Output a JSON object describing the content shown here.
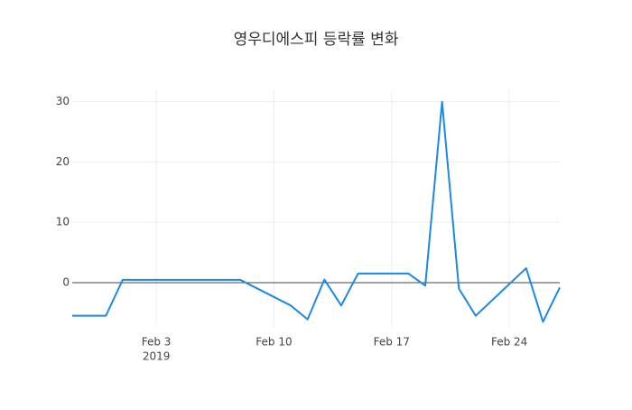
{
  "chart_data": {
    "type": "line",
    "title": "영우디에스피 등락률 변화",
    "x": [
      "2019-01-29",
      "2019-01-30",
      "2019-01-31",
      "2019-02-01",
      "2019-02-07",
      "2019-02-08",
      "2019-02-11",
      "2019-02-12",
      "2019-02-13",
      "2019-02-14",
      "2019-02-15",
      "2019-02-18",
      "2019-02-19",
      "2019-02-20",
      "2019-02-21",
      "2019-02-22",
      "2019-02-25",
      "2019-02-26",
      "2019-02-27"
    ],
    "series": [
      {
        "color": "#1e88e5",
        "values": [
          -5.5,
          -5.5,
          -5.5,
          0.45,
          0.45,
          0.45,
          -3.8,
          -6.1,
          0.5,
          -3.8,
          1.5,
          1.5,
          -0.5,
          30,
          -1.0,
          -5.5,
          2.4,
          -6.5,
          -0.8
        ]
      }
    ],
    "xlim": [
      "2019-01-29",
      "2019-02-27"
    ],
    "xticks": [
      {
        "value": "2019-02-03",
        "label": "Feb 3"
      },
      {
        "value": "2019-02-10",
        "label": "Feb 10"
      },
      {
        "value": "2019-02-17",
        "label": "Feb 17"
      },
      {
        "value": "2019-02-24",
        "label": "Feb 24"
      }
    ],
    "x_year_label": "2019",
    "ylim": [
      -7.35,
      31.9
    ],
    "yticks": [
      0,
      10,
      20,
      30
    ],
    "grid": true,
    "zero_line": true
  }
}
